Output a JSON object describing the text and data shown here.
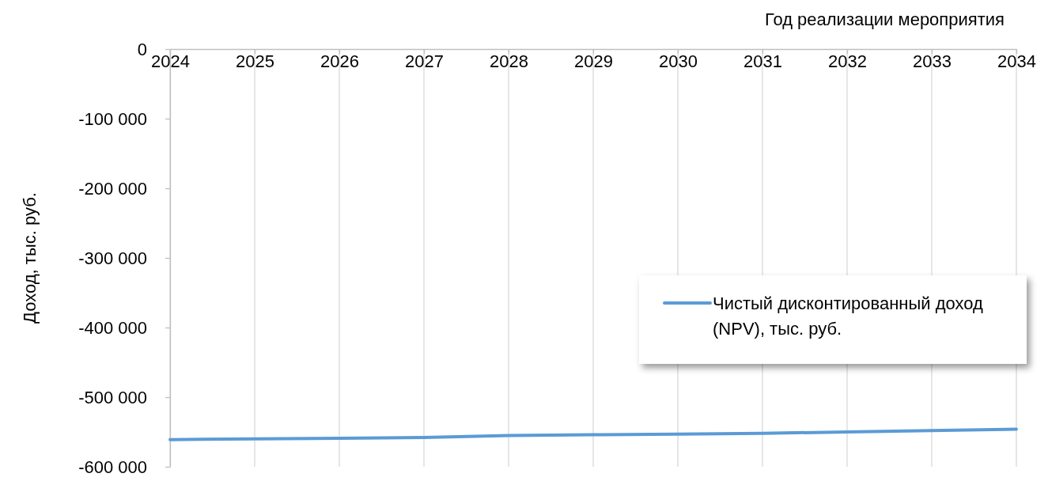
{
  "chart_data": {
    "type": "line",
    "xlabel": "Год реализации мероприятия",
    "ylabel": "Доход, тыс. руб.",
    "x": [
      2024,
      2025,
      2026,
      2027,
      2028,
      2029,
      2030,
      2031,
      2032,
      2033,
      2034
    ],
    "series": [
      {
        "name": "Чистый дисконтированный доход (NPV), тыс. руб.",
        "color": "#5b9bd5",
        "values": [
          -561000,
          -560000,
          -559000,
          -558000,
          -555000,
          -554000,
          -553000,
          -552000,
          -550000,
          -548000,
          -546000
        ]
      }
    ],
    "xlim": [
      2024,
      2034
    ],
    "xticks": [
      2024,
      2025,
      2026,
      2027,
      2028,
      2029,
      2030,
      2031,
      2032,
      2033,
      2034
    ],
    "ylim": [
      -600000,
      0
    ],
    "yticks": [
      {
        "value": -600000,
        "label": "-600 000"
      },
      {
        "value": -500000,
        "label": "-500 000"
      },
      {
        "value": -400000,
        "label": "-400 000"
      },
      {
        "value": -300000,
        "label": "-300 000"
      },
      {
        "value": -200000,
        "label": "-200 000"
      },
      {
        "value": -100000,
        "label": "-100 000"
      },
      0
    ],
    "grid": "x",
    "legend": "right",
    "marker": "none",
    "line_style": "solid"
  }
}
